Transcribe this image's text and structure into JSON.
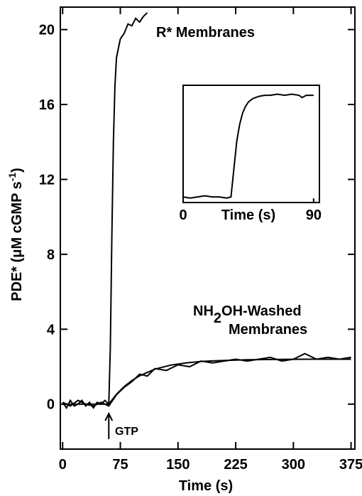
{
  "chart_data": {
    "type": "line",
    "xlabel": "Time (s)",
    "ylabel_parts": [
      "PDE* (μM cGMP s",
      "-1",
      ")"
    ],
    "annotations": [
      "R* Membranes",
      "NH",
      "2",
      "OH-Washed",
      "Membranes",
      "GTP"
    ],
    "xlim": [
      -3,
      380
    ],
    "ylim": [
      -2.4,
      21.2
    ],
    "xticks": [
      0,
      75,
      150,
      225,
      300,
      375
    ],
    "yticks": [
      0,
      4,
      8,
      12,
      16,
      20
    ],
    "series": [
      {
        "color": "#000000",
        "x": [
          0,
          5,
          10,
          15,
          20,
          25,
          30,
          35,
          40,
          45,
          50,
          55,
          60,
          62,
          64,
          66,
          68,
          70,
          75,
          80,
          85,
          90,
          95,
          100,
          105,
          110
        ],
        "values": [
          0.1,
          -0.2,
          0.2,
          -0.1,
          0,
          0.2,
          -0.1,
          0.1,
          -0.2,
          0.1,
          0,
          0.2,
          0,
          3,
          9,
          14,
          17,
          18.5,
          19.5,
          19.8,
          20.3,
          20.2,
          20.6,
          20.4,
          20.7,
          20.9
        ]
      },
      {
        "color": "#000000",
        "x": [
          0,
          10,
          20,
          30,
          40,
          50,
          60,
          70,
          80,
          90,
          100,
          110,
          120,
          135,
          150,
          165,
          180,
          195,
          210,
          225,
          240,
          255,
          270,
          285,
          300,
          315,
          330,
          345,
          360,
          375
        ],
        "values": [
          0.1,
          -0.1,
          0.2,
          0,
          -0.1,
          0.1,
          -0.1,
          0.5,
          0.9,
          1.2,
          1.6,
          1.5,
          1.9,
          1.8,
          2.1,
          2.0,
          2.3,
          2.2,
          2.3,
          2.4,
          2.3,
          2.4,
          2.5,
          2.3,
          2.4,
          2.7,
          2.4,
          2.5,
          2.4,
          2.5
        ]
      },
      {
        "color": "#000000",
        "x": [
          0,
          60,
          70,
          80,
          90,
          100,
          120,
          140,
          160,
          180,
          200,
          240,
          280,
          320,
          375
        ],
        "values": [
          0,
          0,
          0.53,
          0.94,
          1.26,
          1.51,
          1.87,
          2.08,
          2.2,
          2.28,
          2.32,
          2.37,
          2.39,
          2.4,
          2.4
        ]
      }
    ],
    "inset": {
      "type": "line",
      "xlabel": "Time (s)",
      "xlim": [
        0,
        94
      ],
      "ylim": [
        0,
        1.05
      ],
      "xticks": [
        0,
        90
      ],
      "series": [
        {
          "color": "#000000",
          "x": [
            0,
            5,
            10,
            15,
            20,
            25,
            30,
            33,
            35,
            37,
            39,
            41,
            43,
            45,
            48,
            52,
            56,
            60,
            65,
            70,
            75,
            80,
            82,
            85,
            90
          ],
          "values": [
            0.05,
            0.04,
            0.05,
            0.06,
            0.05,
            0.05,
            0.04,
            0.05,
            0.3,
            0.55,
            0.7,
            0.8,
            0.86,
            0.9,
            0.93,
            0.95,
            0.96,
            0.96,
            0.97,
            0.96,
            0.97,
            0.96,
            0.94,
            0.96,
            0.96
          ]
        }
      ]
    }
  }
}
